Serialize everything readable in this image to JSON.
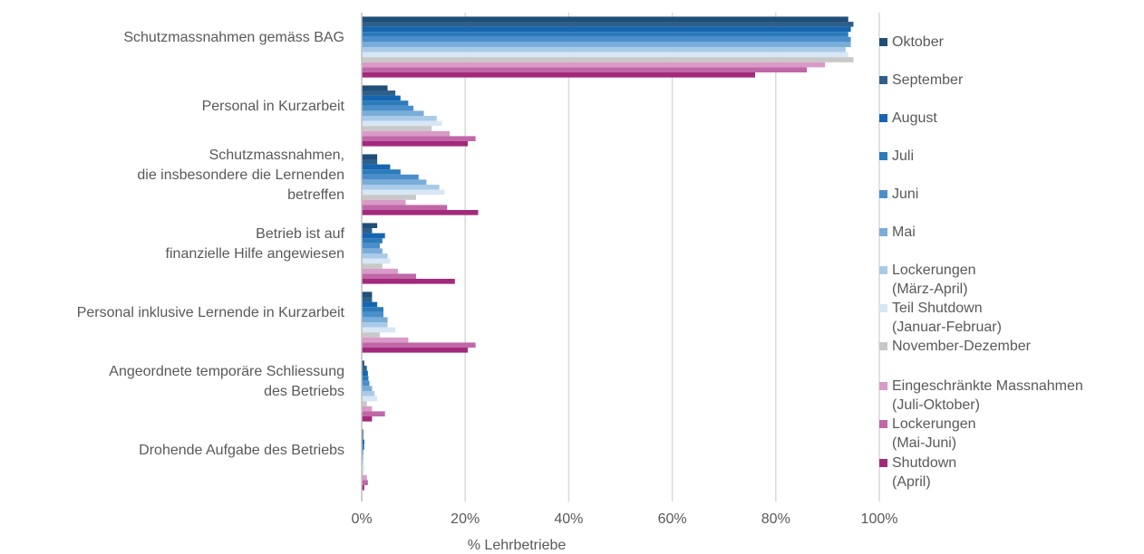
{
  "chart_data": {
    "type": "bar",
    "orientation": "horizontal",
    "xlabel": "% Lehrbetriebe",
    "xlim": [
      0,
      100
    ],
    "x_ticks": [
      "0%",
      "20%",
      "40%",
      "60%",
      "80%",
      "100%"
    ],
    "grid": true,
    "legend_position": "right",
    "categories": [
      "Schutzmassnahmen gemäss BAG",
      "Personal in Kurzarbeit",
      "Schutzmassnahmen,\ndie insbesondere die Lernenden\nbetreffen",
      "Betrieb ist auf\nfinanzielle Hilfe angewiesen",
      "Personal inklusive Lernende in Kurzarbeit",
      "Angeordnete temporäre Schliessung\ndes Betriebs",
      "Drohende Aufgabe des Betriebs"
    ],
    "series": [
      {
        "name": "Oktober",
        "color": "#1f4e79",
        "values": [
          94,
          5,
          3,
          3,
          2,
          0.5,
          0.3
        ]
      },
      {
        "name": "September",
        "color": "#2e5f8a",
        "values": [
          95,
          6.5,
          3,
          2,
          2,
          1,
          0.3
        ]
      },
      {
        "name": "August",
        "color": "#1565b0",
        "values": [
          94.5,
          7.5,
          5.5,
          4.5,
          3,
          1.2,
          0.5
        ]
      },
      {
        "name": "Juli",
        "color": "#2b7bba",
        "values": [
          94,
          9,
          7.5,
          4,
          4.2,
          1.3,
          0.5
        ]
      },
      {
        "name": "Juni",
        "color": "#4a8fcc",
        "values": [
          94.5,
          10,
          11,
          3.5,
          4.2,
          1.5,
          0.3
        ]
      },
      {
        "name": "Mai",
        "color": "#7aadd9",
        "values": [
          94.5,
          12,
          12.5,
          4,
          5,
          2,
          0.3
        ]
      },
      {
        "name": "Lockerungen\n(März-April)",
        "color": "#a9cbe8",
        "values": [
          93.5,
          14.5,
          15,
          5,
          5,
          2.5,
          0.3
        ]
      },
      {
        "name": "Teil Shutdown\n(Januar-Februar)",
        "color": "#d7e7f5",
        "values": [
          94,
          15.5,
          16,
          5.5,
          6.5,
          3,
          0.5
        ]
      },
      {
        "name": "November-Dezember",
        "color": "#c8c8c8",
        "values": [
          95,
          13.5,
          10.5,
          4,
          3.5,
          1,
          0.3
        ]
      },
      {
        "name": "Eingeschränkte Massnahmen\n(Juli-Oktober)",
        "color": "#d99ac8",
        "values": [
          89.5,
          17,
          8.5,
          7,
          9,
          2,
          1
        ]
      },
      {
        "name": "Lockerungen\n(Mai-Juni)",
        "color": "#c067a8",
        "values": [
          86,
          22,
          16.5,
          10.5,
          22,
          4.5,
          1.2
        ]
      },
      {
        "name": "Shutdown\n(April)",
        "color": "#a3297c",
        "values": [
          76,
          20.5,
          22.5,
          18,
          20.5,
          2,
          0.5
        ]
      }
    ]
  }
}
